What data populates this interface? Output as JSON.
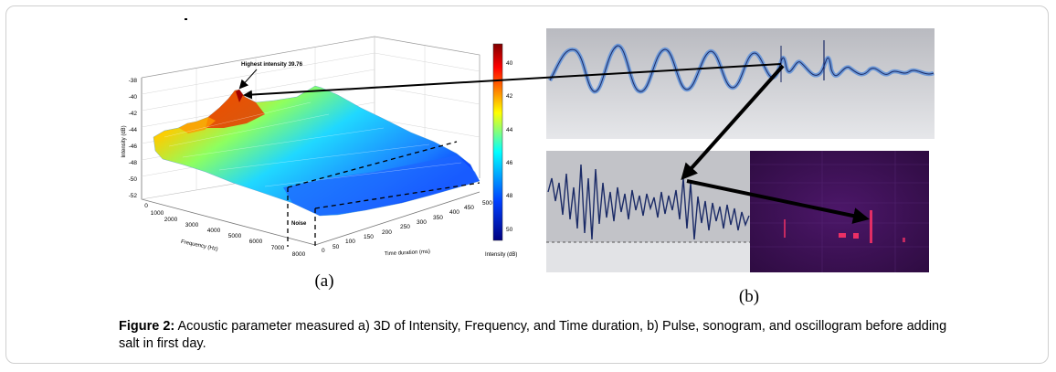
{
  "panel_a": {
    "label": "(a)",
    "annotation": "Highest intensity 39.76",
    "noise_label": "Noise",
    "z_axis_label": "Intensity (dB)",
    "x_axis_label": "Frequency (Hz)",
    "y_axis_label": "Time duration (ms)",
    "colorbar_label": "Intensity (dB)",
    "z_ticks": [
      "-38",
      "-40",
      "-42",
      "-44",
      "-46",
      "-48",
      "-50",
      "-52"
    ],
    "freq_ticks": [
      "0",
      "1000",
      "2000",
      "3000",
      "4000",
      "5000",
      "6000",
      "7000",
      "8000"
    ],
    "time_ticks": [
      "0",
      "50",
      "100",
      "150",
      "200",
      "250",
      "300",
      "350",
      "400",
      "450",
      "500"
    ],
    "colorbar_ticks": [
      "40",
      "42",
      "44",
      "46",
      "48",
      "50"
    ]
  },
  "panel_b": {
    "label": "(b)"
  },
  "caption": {
    "bold": "Figure 2:",
    "text": " Acoustic parameter measured a) 3D of Intensity, Frequency, and Time duration, b) Pulse, sonogram, and oscillogram before adding salt in first day."
  },
  "colors": {
    "arrow": "#000000",
    "waveform": "#1a2a66",
    "waveform_fill": "#6f9ad8",
    "panel_gray": "#c2c3c8",
    "sonogram": "#3a1050"
  }
}
